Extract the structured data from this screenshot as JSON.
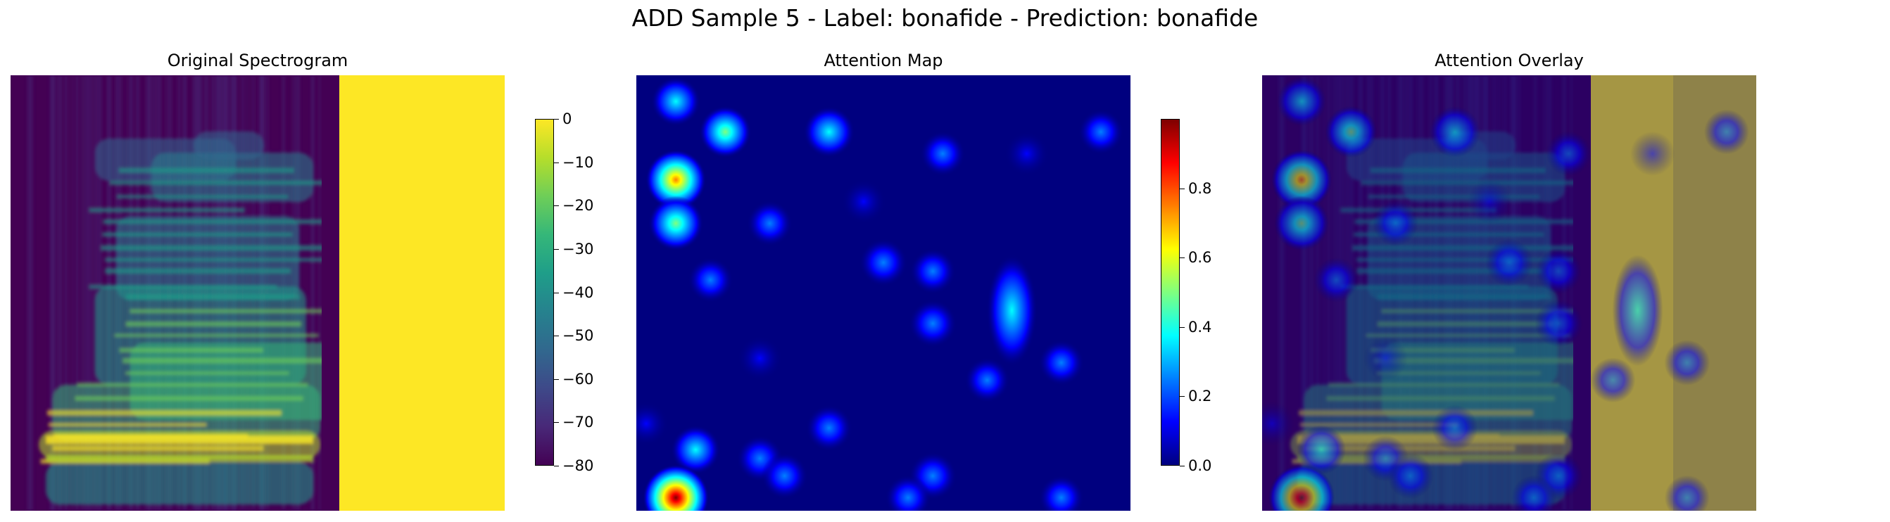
{
  "figure": {
    "suptitle": "ADD Sample 5 - Label: bonafide - Prediction: bonafide"
  },
  "chart_data": [
    {
      "type": "heatmap",
      "title": "Original Spectrogram",
      "xlabel": "",
      "ylabel": "",
      "axes_visible": false,
      "colormap": "viridis",
      "colorbar": {
        "range": [
          -80,
          0
        ],
        "ticks": [
          0,
          -10,
          -20,
          -30,
          -40,
          -50,
          -60,
          -70,
          -80
        ]
      },
      "note_values": {
        "padded_region_value_db": 0
      }
    },
    {
      "type": "heatmap",
      "title": "Attention Map",
      "xlabel": "",
      "ylabel": "",
      "axes_visible": false,
      "colormap": "jet",
      "colorbar": {
        "range": [
          0.0,
          1.0
        ],
        "ticks": [
          0.8,
          0.6,
          0.4,
          0.2,
          0.0
        ]
      },
      "hotspots": [
        {
          "x": 0.08,
          "y": 0.06,
          "value": 0.35
        },
        {
          "x": 0.18,
          "y": 0.13,
          "value": 0.45
        },
        {
          "x": 0.39,
          "y": 0.13,
          "value": 0.42
        },
        {
          "x": 0.94,
          "y": 0.13,
          "value": 0.2
        },
        {
          "x": 0.08,
          "y": 0.24,
          "value": 0.75
        },
        {
          "x": 0.08,
          "y": 0.34,
          "value": 0.55
        },
        {
          "x": 0.62,
          "y": 0.18,
          "value": 0.2
        },
        {
          "x": 0.79,
          "y": 0.18,
          "value": 0.18
        },
        {
          "x": 0.27,
          "y": 0.34,
          "value": 0.22
        },
        {
          "x": 0.46,
          "y": 0.29,
          "value": 0.18
        },
        {
          "x": 0.15,
          "y": 0.47,
          "value": 0.2
        },
        {
          "x": 0.25,
          "y": 0.65,
          "value": 0.18
        },
        {
          "x": 0.5,
          "y": 0.43,
          "value": 0.3
        },
        {
          "x": 0.6,
          "y": 0.45,
          "value": 0.22
        },
        {
          "x": 0.6,
          "y": 0.57,
          "value": 0.3
        },
        {
          "x": 0.76,
          "y": 0.54,
          "value": 0.4
        },
        {
          "x": 0.86,
          "y": 0.66,
          "value": 0.22
        },
        {
          "x": 0.71,
          "y": 0.7,
          "value": 0.2
        },
        {
          "x": 0.39,
          "y": 0.81,
          "value": 0.25
        },
        {
          "x": 0.12,
          "y": 0.86,
          "value": 0.35
        },
        {
          "x": 0.25,
          "y": 0.88,
          "value": 0.25
        },
        {
          "x": 0.3,
          "y": 0.92,
          "value": 0.25
        },
        {
          "x": 0.6,
          "y": 0.92,
          "value": 0.3
        },
        {
          "x": 0.55,
          "y": 0.97,
          "value": 0.22
        },
        {
          "x": 0.08,
          "y": 0.97,
          "value": 0.95
        },
        {
          "x": 0.86,
          "y": 0.97,
          "value": 0.2
        },
        {
          "x": 0.02,
          "y": 0.8,
          "value": 0.18
        }
      ]
    },
    {
      "type": "heatmap",
      "title": "Attention Overlay",
      "xlabel": "",
      "ylabel": "",
      "axes_visible": false,
      "composition": "spectrogram (viridis) blended with attention map (jet)"
    }
  ],
  "colors": {
    "viridis": [
      "#440154",
      "#482878",
      "#3e4989",
      "#31688e",
      "#26828e",
      "#1f9e89",
      "#35b779",
      "#6ece58",
      "#b5de2b",
      "#fde725"
    ],
    "jet": [
      "#00007f",
      "#0000ff",
      "#007fff",
      "#00ffff",
      "#7fff7f",
      "#ffff00",
      "#ff7f00",
      "#ff0000",
      "#7f0000"
    ]
  }
}
